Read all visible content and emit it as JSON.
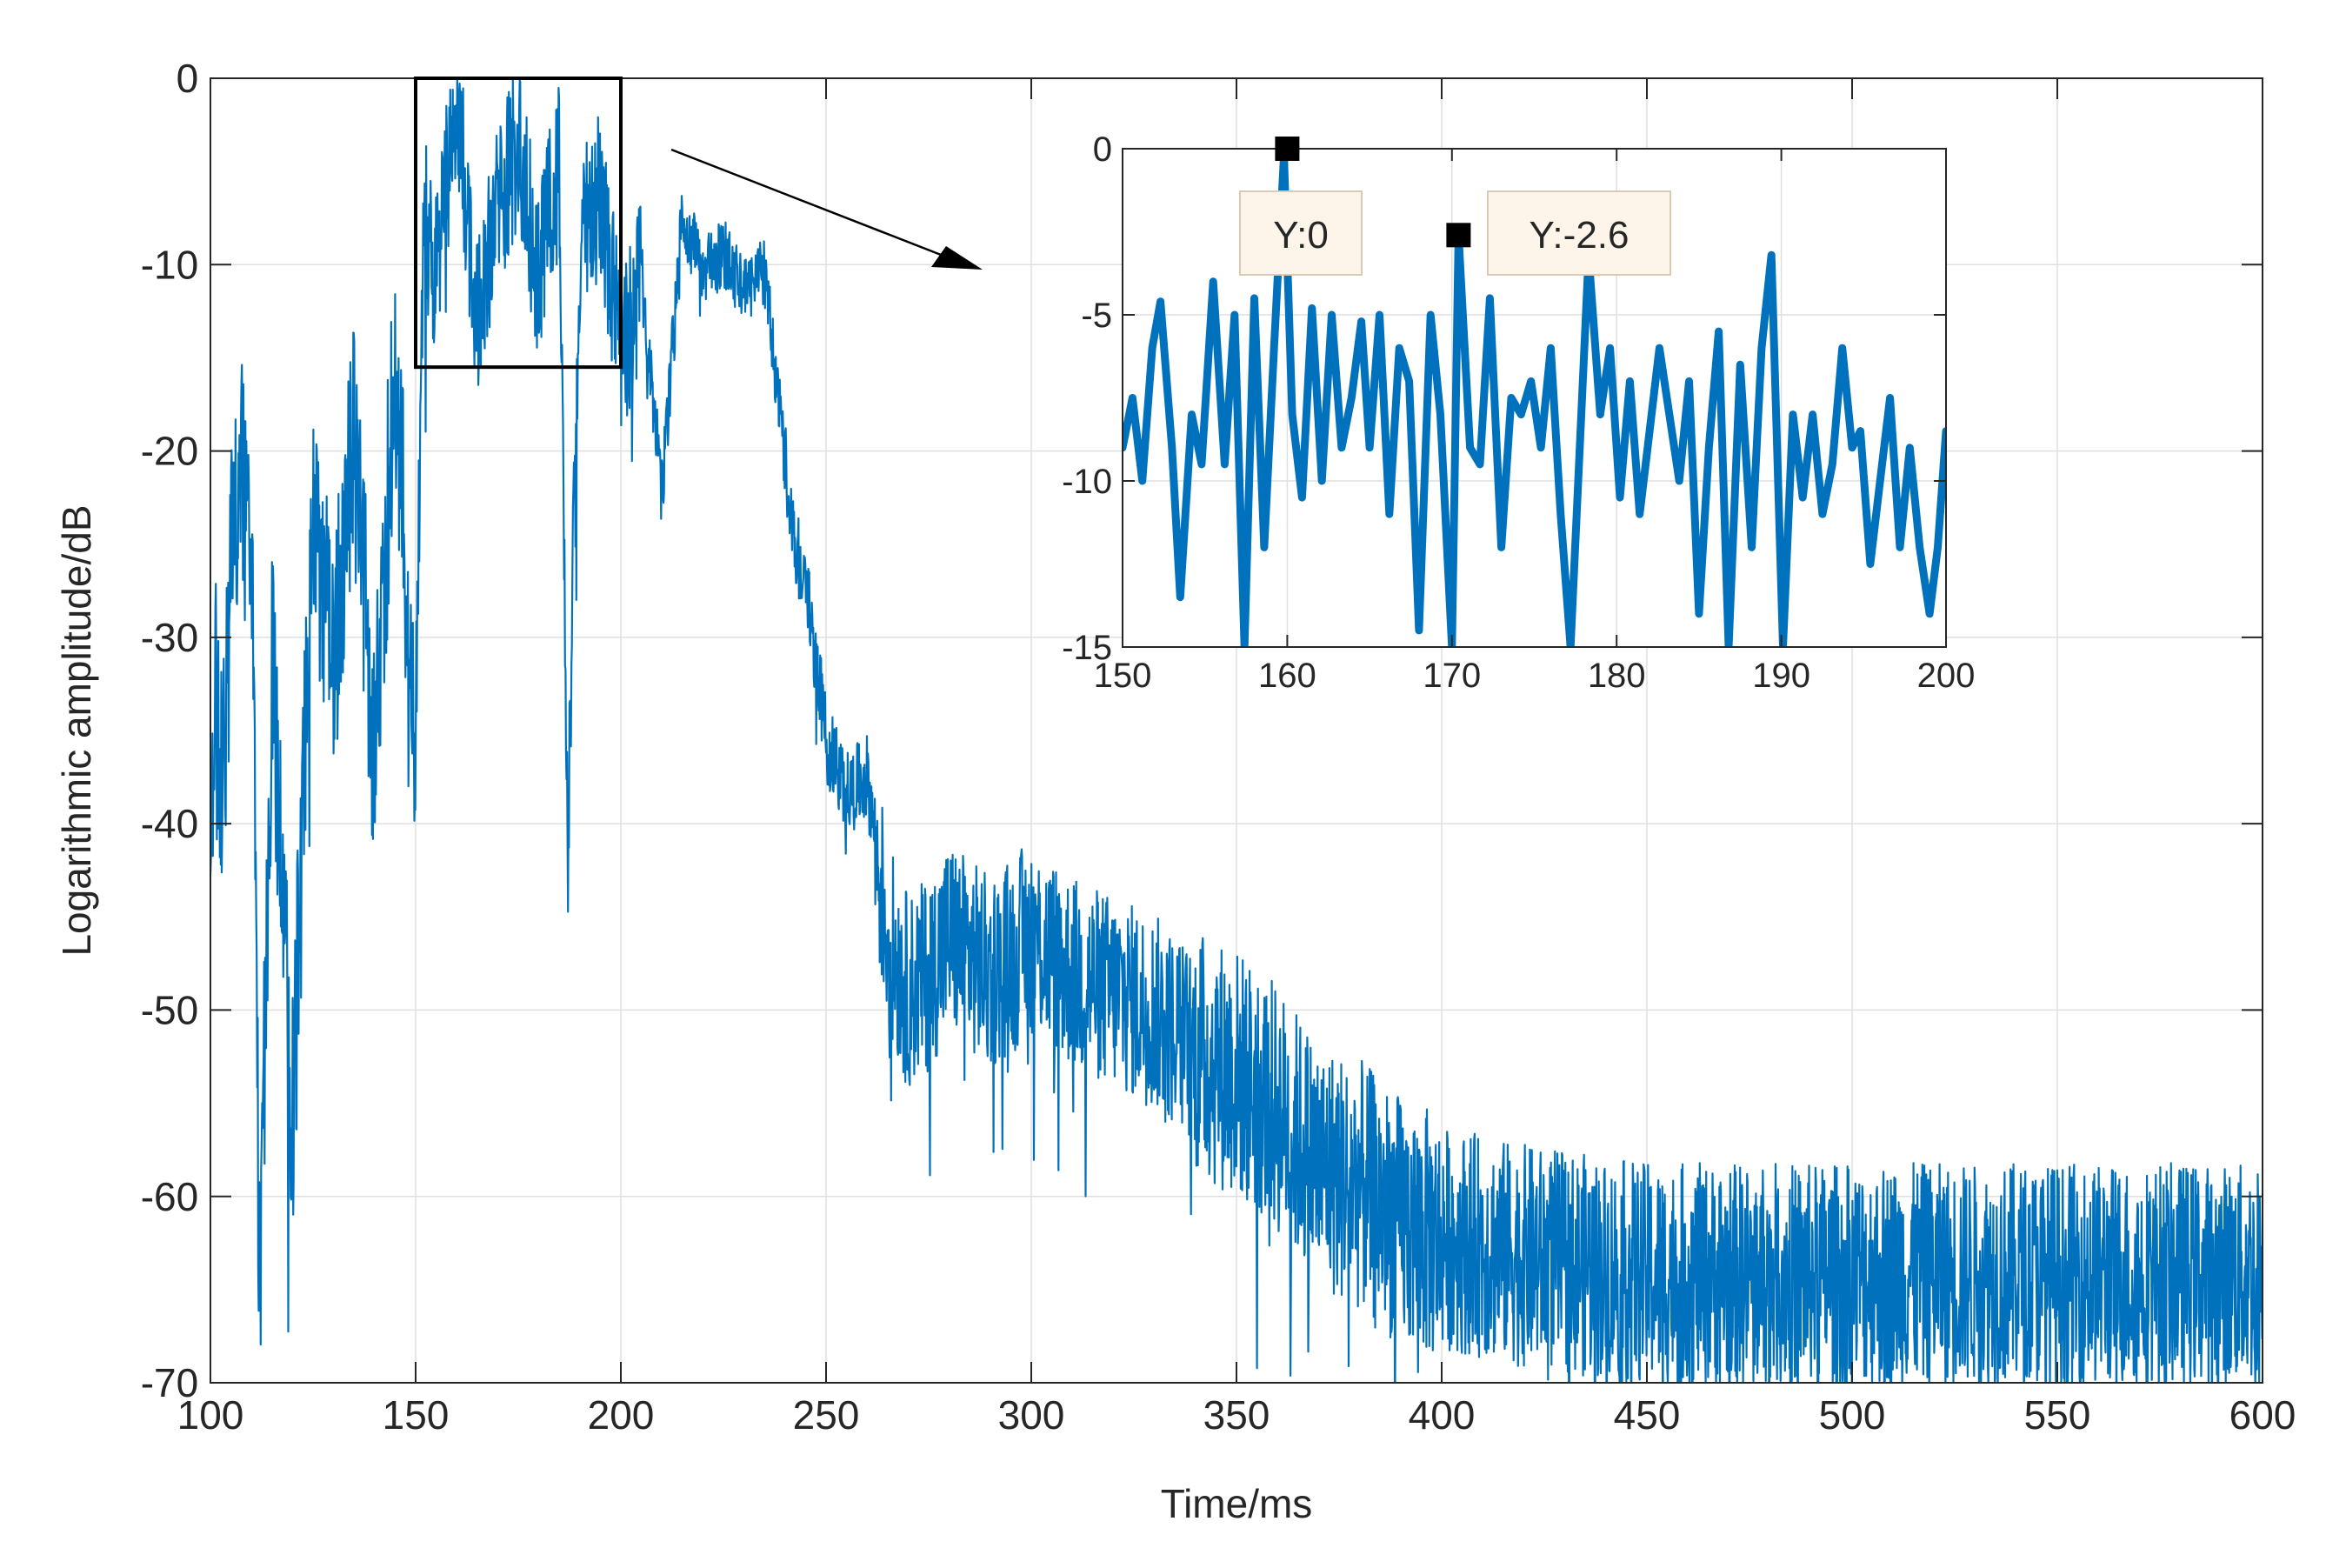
{
  "chart_data": {
    "type": "line",
    "main": {
      "xlabel": "Time/ms",
      "ylabel": "Logarithmic amplitude/dB",
      "xlim": [
        100,
        600
      ],
      "ylim": [
        -70,
        0
      ],
      "xticks": [
        100,
        150,
        200,
        250,
        300,
        350,
        400,
        450,
        500,
        550,
        600
      ],
      "yticks": [
        0,
        -10,
        -20,
        -30,
        -40,
        -50,
        -60,
        -70
      ],
      "grid": true,
      "series_color": "#0072BD",
      "keypoints": [
        [
          100,
          -45
        ],
        [
          101,
          -31
        ],
        [
          103,
          -38
        ],
        [
          105,
          -25
        ],
        [
          108,
          -20
        ],
        [
          110,
          -23
        ],
        [
          112,
          -65
        ],
        [
          115,
          -30
        ],
        [
          120,
          -55
        ],
        [
          125,
          -22
        ],
        [
          130,
          -30
        ],
        [
          135,
          -18
        ],
        [
          140,
          -35
        ],
        [
          145,
          -14
        ],
        [
          150,
          -35
        ],
        [
          152,
          -6
        ],
        [
          155,
          -10
        ],
        [
          160,
          0
        ],
        [
          165,
          -12
        ],
        [
          170,
          -6
        ],
        [
          175,
          -2.6
        ],
        [
          180,
          -10
        ],
        [
          185,
          -3
        ],
        [
          187,
          -41
        ],
        [
          190,
          -8
        ],
        [
          195,
          -5
        ],
        [
          200,
          -14
        ],
        [
          205,
          -10
        ],
        [
          210,
          -22
        ],
        [
          215,
          -7
        ],
        [
          220,
          -10
        ],
        [
          225,
          -9
        ],
        [
          230,
          -11
        ],
        [
          235,
          -10
        ],
        [
          240,
          -20
        ],
        [
          243,
          -25
        ],
        [
          246,
          -28
        ],
        [
          250,
          -35
        ],
        [
          255,
          -38
        ],
        [
          260,
          -37
        ],
        [
          265,
          -45
        ],
        [
          270,
          -48
        ],
        [
          275,
          -47
        ],
        [
          280,
          -45
        ],
        [
          290,
          -47
        ],
        [
          300,
          -45
        ],
        [
          310,
          -47
        ],
        [
          320,
          -48
        ],
        [
          330,
          -49
        ],
        [
          340,
          -51
        ],
        [
          350,
          -52
        ],
        [
          360,
          -54
        ],
        [
          370,
          -57
        ],
        [
          380,
          -58
        ],
        [
          390,
          -60
        ],
        [
          400,
          -61
        ],
        [
          420,
          -62
        ],
        [
          450,
          -63
        ],
        [
          500,
          -63
        ],
        [
          550,
          -63
        ],
        [
          600,
          -63
        ]
      ],
      "zoom_box": {
        "x": [
          150,
          200
        ],
        "y": [
          -15.5,
          0
        ]
      }
    },
    "inset": {
      "xlim": [
        150,
        200
      ],
      "ylim": [
        -15,
        0
      ],
      "xticks": [
        150,
        160,
        170,
        180,
        190,
        200
      ],
      "yticks": [
        0,
        -5,
        -10,
        -15
      ],
      "points": [
        [
          150,
          -9
        ],
        [
          150.6,
          -7.5
        ],
        [
          151.2,
          -10
        ],
        [
          151.8,
          -6
        ],
        [
          152.3,
          -4.6
        ],
        [
          153,
          -9
        ],
        [
          153.5,
          -13.5
        ],
        [
          154.2,
          -8
        ],
        [
          154.8,
          -9.5
        ],
        [
          155.5,
          -4
        ],
        [
          156.2,
          -9.5
        ],
        [
          156.8,
          -5
        ],
        [
          157.4,
          -15
        ],
        [
          158,
          -4.5
        ],
        [
          158.6,
          -12
        ],
        [
          159.2,
          -6
        ],
        [
          159.8,
          -0.2
        ],
        [
          160.3,
          -8
        ],
        [
          160.9,
          -10.5
        ],
        [
          161.5,
          -4.8
        ],
        [
          162.1,
          -10
        ],
        [
          162.7,
          -5
        ],
        [
          163.3,
          -9
        ],
        [
          163.9,
          -7.5
        ],
        [
          164.5,
          -5.2
        ],
        [
          165,
          -9
        ],
        [
          165.6,
          -5
        ],
        [
          166.2,
          -11
        ],
        [
          166.8,
          -6
        ],
        [
          167.4,
          -7
        ],
        [
          168,
          -14.5
        ],
        [
          168.7,
          -5
        ],
        [
          169.3,
          -8
        ],
        [
          170,
          -15
        ],
        [
          170.4,
          -2.6
        ],
        [
          171.1,
          -9
        ],
        [
          171.7,
          -9.5
        ],
        [
          172.3,
          -4.5
        ],
        [
          173,
          -12
        ],
        [
          173.6,
          -7.5
        ],
        [
          174.2,
          -8
        ],
        [
          174.8,
          -7
        ],
        [
          175.4,
          -9
        ],
        [
          176,
          -6
        ],
        [
          176.6,
          -11
        ],
        [
          177.2,
          -15
        ],
        [
          178.3,
          -3.2
        ],
        [
          179,
          -8
        ],
        [
          179.6,
          -6
        ],
        [
          180.2,
          -10.5
        ],
        [
          180.8,
          -7
        ],
        [
          181.4,
          -11
        ],
        [
          182,
          -8.5
        ],
        [
          182.6,
          -6
        ],
        [
          183.2,
          -8
        ],
        [
          183.8,
          -10
        ],
        [
          184.4,
          -7
        ],
        [
          185,
          -14
        ],
        [
          185.6,
          -9
        ],
        [
          186.2,
          -5.5
        ],
        [
          186.8,
          -15
        ],
        [
          187.5,
          -6.5
        ],
        [
          188.2,
          -12
        ],
        [
          188.8,
          -6
        ],
        [
          189.4,
          -3.2
        ],
        [
          190.1,
          -15
        ],
        [
          190.7,
          -8
        ],
        [
          191.3,
          -10.5
        ],
        [
          191.9,
          -8
        ],
        [
          192.5,
          -11
        ],
        [
          193.1,
          -9.5
        ],
        [
          193.7,
          -6
        ],
        [
          194.3,
          -9
        ],
        [
          194.8,
          -8.5
        ],
        [
          195.4,
          -12.5
        ],
        [
          196,
          -10
        ],
        [
          196.6,
          -7.5
        ],
        [
          197.2,
          -12
        ],
        [
          197.8,
          -9
        ],
        [
          198.4,
          -12
        ],
        [
          199,
          -14
        ],
        [
          199.5,
          -12
        ],
        [
          200,
          -8.5
        ]
      ],
      "datatips": [
        {
          "x": 160,
          "y": 0,
          "label": "Y:0"
        },
        {
          "x": 170.4,
          "y": -2.6,
          "label": "Y:-2.6"
        }
      ]
    }
  }
}
